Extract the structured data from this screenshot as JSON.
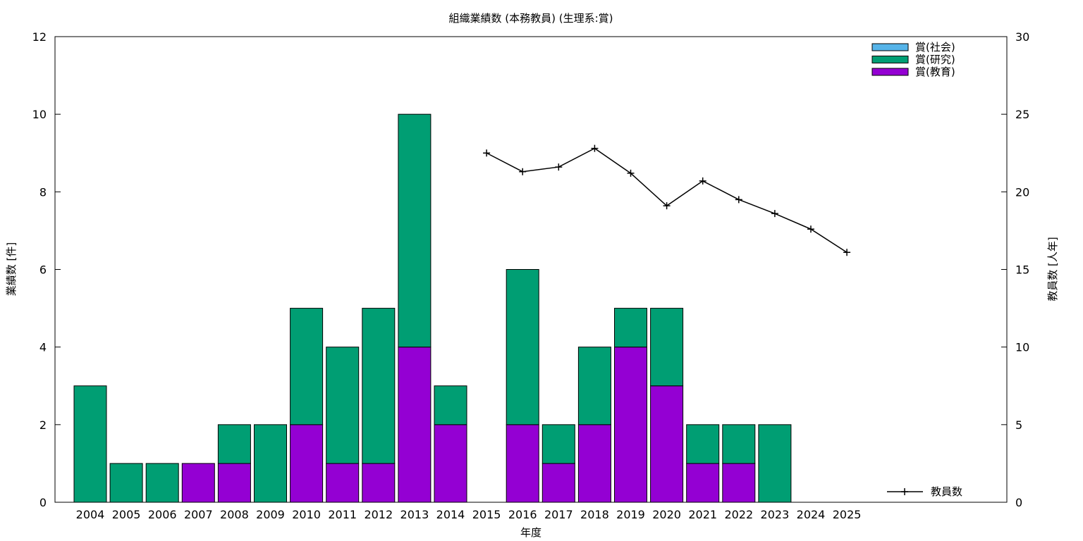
{
  "chart_data": {
    "type": "bar",
    "title": "組織業績数 (本務教員) (生理系:賞)",
    "xlabel": "年度",
    "ylabel": "業績数 [件]",
    "y2label": "教員数 [人年]",
    "ylim": [
      0,
      12
    ],
    "y2lim": [
      0,
      30
    ],
    "yticks": [
      0,
      2,
      4,
      6,
      8,
      10,
      12
    ],
    "y2ticks": [
      0,
      5,
      10,
      15,
      20,
      25,
      30
    ],
    "categories": [
      "2004",
      "2005",
      "2006",
      "2007",
      "2008",
      "2009",
      "2010",
      "2011",
      "2012",
      "2013",
      "2014",
      "2015",
      "2016",
      "2017",
      "2018",
      "2019",
      "2020",
      "2021",
      "2022",
      "2023",
      "2024",
      "2025"
    ],
    "stacked": true,
    "series": [
      {
        "name": "賞(教育)",
        "color": "#9400d3",
        "values": [
          0,
          0,
          0,
          1,
          1,
          0,
          2,
          1,
          1,
          4,
          2,
          0,
          2,
          1,
          2,
          4,
          3,
          1,
          1,
          0,
          0,
          0
        ]
      },
      {
        "name": "賞(研究)",
        "color": "#009e73",
        "values": [
          3,
          1,
          1,
          0,
          1,
          2,
          3,
          3,
          4,
          6,
          1,
          0,
          4,
          1,
          2,
          1,
          2,
          1,
          1,
          2,
          0,
          0
        ]
      },
      {
        "name": "賞(社会)",
        "color": "#56b4e9",
        "values": [
          0,
          0,
          0,
          0,
          0,
          0,
          0,
          0,
          0,
          0,
          0,
          0,
          0,
          0,
          0,
          0,
          0,
          0,
          0,
          0,
          0,
          0
        ]
      }
    ],
    "line_series": {
      "name": "教員数",
      "color": "#000000",
      "axis": "y2",
      "values": [
        null,
        null,
        null,
        null,
        null,
        null,
        null,
        null,
        null,
        null,
        null,
        22.5,
        21.3,
        21.6,
        22.8,
        21.2,
        19.1,
        20.7,
        19.5,
        18.6,
        17.6,
        16.1
      ]
    },
    "legend_position": "top-right"
  }
}
